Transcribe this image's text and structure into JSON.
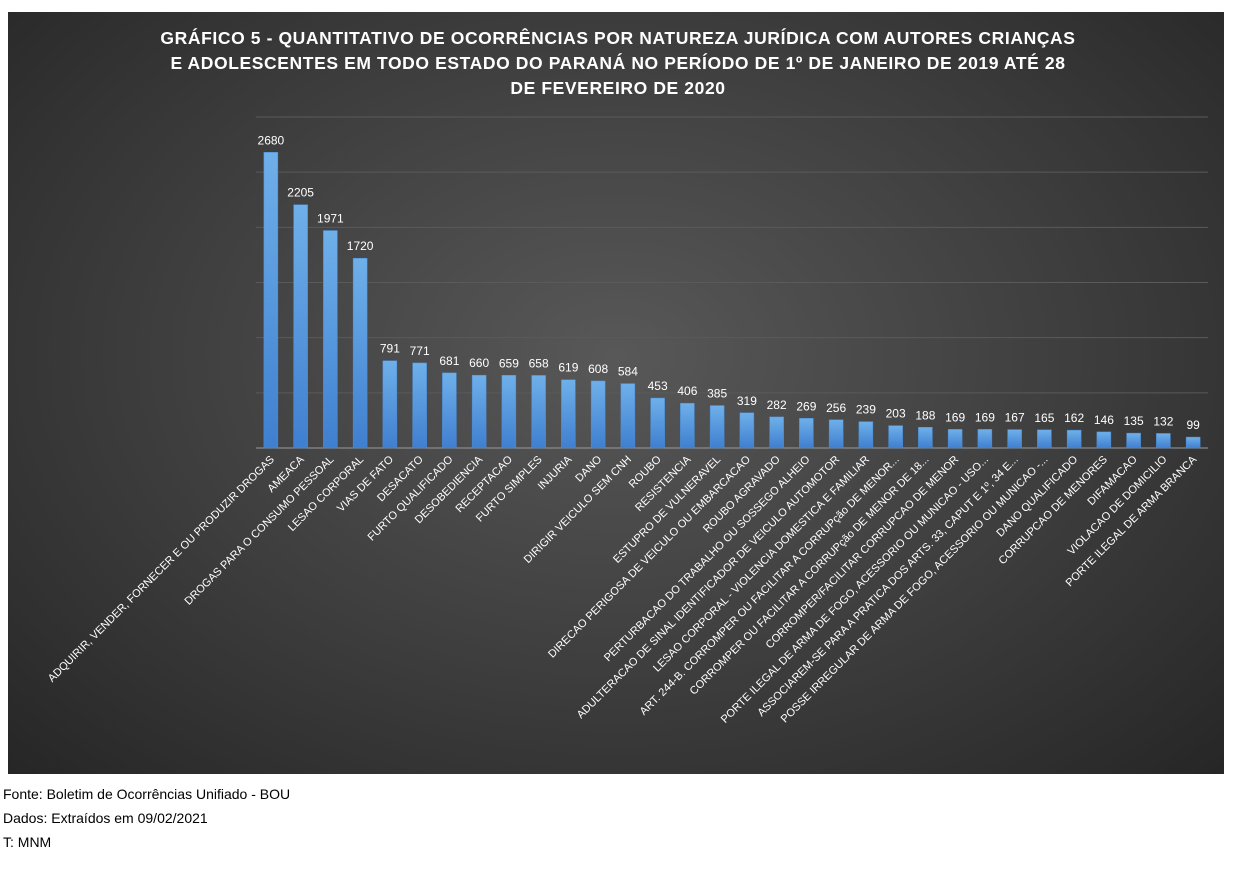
{
  "chart_data": {
    "type": "bar",
    "title_lines": [
      "GRÁFICO 5 - QUANTITATIVO DE OCORRÊNCIAS POR NATUREZA JURÍDICA COM AUTORES CRIANÇAS",
      "E ADOLESCENTES EM TODO ESTADO DO PARANÁ NO PERÍODO DE 1º DE JANEIRO DE 2019 ATÉ 28",
      "DE FEVEREIRO DE 2020"
    ],
    "categories": [
      "ADQUIRIR, VENDER, FORNECER E OU PRODUZIR DROGAS",
      "AMEACA",
      "DROGAS PARA O CONSUMO PESSOAL",
      "LESAO CORPORAL",
      "VIAS DE FATO",
      "DESACATO",
      "FURTO QUALIFICADO",
      "DESOBEDIENCIA",
      "RECEPTACAO",
      "FURTO SIMPLES",
      "INJURIA",
      "DANO",
      "DIRIGIR VEICULO SEM CNH",
      "ROUBO",
      "RESISTENCIA",
      "ESTUPRO DE VULNERAVEL",
      "DIRECAO PERIGOSA DE VEICULO OU EMBARCACAO",
      "ROUBO AGRAVADO",
      "PERTURBACAO DO TRABALHO OU SOSSEGO ALHEIO",
      "ADULTERACAO DE SINAL IDENTIFICADOR DE VEICULO AUTOMOTOR",
      "LESAO CORPORAL - VIOLENCIA DOMESTICA E FAMILIAR",
      "ART. 244-B. CORROMPER OU FACILITAR A CORRUPção DE MENOR...",
      "CORROMPER OU FACILITAR A CORRUPção DE MENOR DE 18...",
      "CORROMPER/FACILITAR CORRUPCAO DE MENOR",
      "PORTE ILEGAL DE ARMA DE FOGO, ACESSORIO OU MUNICAO - USO...",
      "ASSOCIAREM-SE PARA A PRATICA DOS ARTS. 33, CAPUT E 1º, 34 E...",
      "POSSE IRREGULAR DE ARMA DE FOGO, ACESSORIO OU MUNICAO -...",
      "DANO QUALIFICADO",
      "CORRUPCAO DE MENORES",
      "DIFAMACAO",
      "VIOLACAO DE DOMICILIO",
      "PORTE ILEGAL DE ARMA BRANCA"
    ],
    "values": [
      2680,
      2205,
      1971,
      1720,
      791,
      771,
      681,
      660,
      659,
      658,
      619,
      608,
      584,
      453,
      406,
      385,
      319,
      282,
      269,
      256,
      239,
      203,
      188,
      169,
      169,
      167,
      165,
      162,
      146,
      135,
      132,
      99
    ],
    "data_labels": [
      "2680",
      "2205",
      "1971",
      "1720",
      "791",
      "771",
      "681",
      "660",
      "659",
      "658",
      "619",
      "608",
      "584",
      "453",
      "406",
      "385",
      "319",
      "282",
      "269",
      "256",
      "239",
      "203",
      "188",
      "169",
      "169",
      "167",
      "165",
      "162",
      "146",
      "135",
      "132",
      "99"
    ],
    "ylim": [
      0,
      3000
    ],
    "gridlines": true,
    "y_gridline_step": 500,
    "y_axis_labels": false,
    "legend": false,
    "colors": {
      "bar_top": "#6fb0ea",
      "bar_bottom": "#3f7fcf",
      "text": "#ffffff",
      "gridline": "#5a5a5a",
      "axis": "#9a9a9a"
    }
  },
  "footnotes": {
    "source": "Fonte: Boletim de Ocorrências Unifiado - BOU",
    "extracted": "Dados: Extraídos em 09/02/2021",
    "author": "T: MNM"
  }
}
